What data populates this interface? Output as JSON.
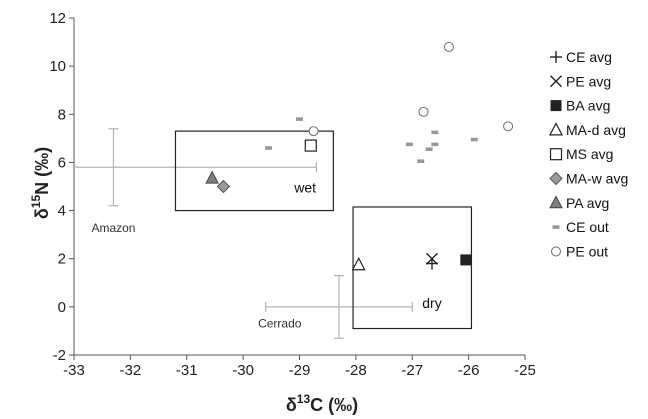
{
  "chart_data": {
    "type": "scatter",
    "xlabel": "δ 13C (‰)",
    "xlabel_main": "δ",
    "xlabel_sup": "13",
    "xlabel_tail": "C (‰)",
    "ylabel": "δ15N (‰)",
    "ylabel_main": "δ",
    "ylabel_sup": "15",
    "ylabel_tail": "N (‰)",
    "xlim": [
      -33,
      -25
    ],
    "ylim": [
      -2,
      12
    ],
    "x_ticks": [
      -33,
      -32,
      -31,
      -30,
      -29,
      -28,
      -27,
      -26,
      -25
    ],
    "y_ticks": [
      -2,
      0,
      2,
      4,
      6,
      8,
      10,
      12
    ],
    "grid": false,
    "legend_position": "right",
    "series": [
      {
        "name": "CE avg",
        "marker": "plus",
        "points": [
          {
            "x": -26.65,
            "y": 1.8
          }
        ]
      },
      {
        "name": "PE avg",
        "marker": "x",
        "points": [
          {
            "x": -26.65,
            "y": 2.0
          }
        ]
      },
      {
        "name": "BA avg",
        "marker": "square-filled",
        "points": [
          {
            "x": -26.05,
            "y": 1.95
          }
        ]
      },
      {
        "name": "MA-d avg",
        "marker": "triangle-open",
        "points": [
          {
            "x": -27.95,
            "y": 1.75
          }
        ]
      },
      {
        "name": "MS avg",
        "marker": "square-open",
        "points": [
          {
            "x": -28.8,
            "y": 6.7
          }
        ]
      },
      {
        "name": "MA-w avg",
        "marker": "diamond-gray",
        "points": [
          {
            "x": -30.35,
            "y": 5.0
          }
        ]
      },
      {
        "name": "PA avg",
        "marker": "triangle-gray",
        "points": [
          {
            "x": -30.55,
            "y": 5.35
          }
        ]
      },
      {
        "name": "CE out",
        "marker": "dash",
        "points": [
          {
            "x": -29.55,
            "y": 6.6
          },
          {
            "x": -29.0,
            "y": 7.8
          },
          {
            "x": -27.05,
            "y": 6.75
          },
          {
            "x": -26.85,
            "y": 6.05
          },
          {
            "x": -26.7,
            "y": 6.55
          },
          {
            "x": -26.6,
            "y": 6.75
          },
          {
            "x": -26.6,
            "y": 7.25
          },
          {
            "x": -25.9,
            "y": 6.95
          }
        ]
      },
      {
        "name": "PE out",
        "marker": "circle-open",
        "points": [
          {
            "x": -28.75,
            "y": 7.3
          },
          {
            "x": -26.8,
            "y": 8.1
          },
          {
            "x": -26.35,
            "y": 10.8
          },
          {
            "x": -25.3,
            "y": 7.5
          }
        ]
      }
    ],
    "error_bars": [
      {
        "label": "Amazon",
        "x": -32.3,
        "y": 5.8,
        "x_range": [
          -33,
          -28.7
        ],
        "y_range": [
          4.2,
          7.4
        ],
        "label_x": -32.3,
        "label_y": 3.1
      },
      {
        "label": "Cerrado",
        "x": -28.3,
        "y": 0.0,
        "x_range": [
          -29.6,
          -27.0
        ],
        "y_range": [
          -1.3,
          1.3
        ],
        "label_x": -29.35,
        "label_y": -0.85
      }
    ],
    "regions": [
      {
        "label": "wet",
        "x_range": [
          -31.2,
          -28.4
        ],
        "y_range": [
          4.0,
          7.3
        ],
        "label_x": -28.9,
        "label_y": 4.75
      },
      {
        "label": "dry",
        "x_range": [
          -28.05,
          -25.95
        ],
        "y_range": [
          -0.9,
          4.15
        ],
        "label_x": -26.65,
        "label_y": -0.05
      }
    ]
  }
}
